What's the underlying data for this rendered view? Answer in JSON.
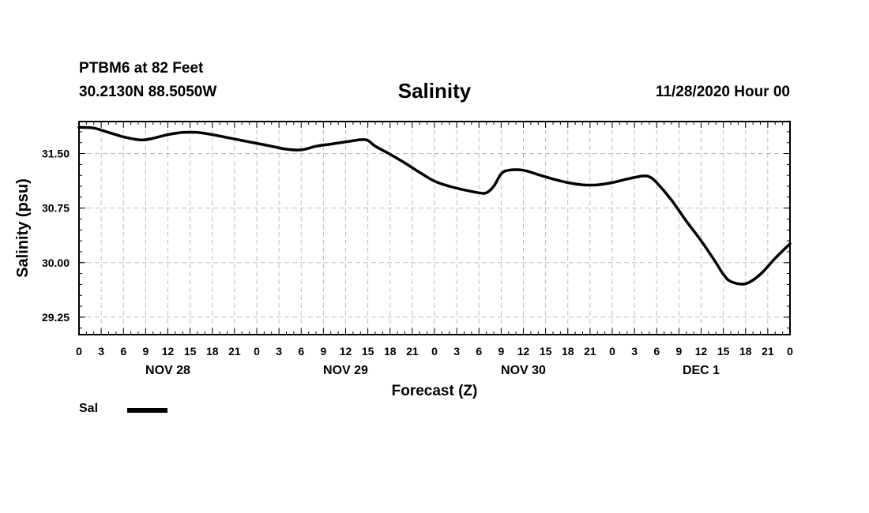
{
  "header": {
    "station": "PTBM6 at 82 Feet",
    "coords": "30.2130N 88.5050W",
    "title": "Salinity",
    "datetime": "11/28/2020 Hour 00"
  },
  "chart_data": {
    "type": "line",
    "title": "Salinity",
    "xlabel": "Forecast (Z)",
    "ylabel": "Salinity (psu)",
    "xlim": [
      0,
      96
    ],
    "ylim": [
      29.01,
      31.94
    ],
    "grid": true,
    "x_ticks": [
      0,
      3,
      6,
      9,
      12,
      15,
      18,
      21,
      24,
      27,
      30,
      33,
      36,
      39,
      42,
      45,
      48,
      51,
      54,
      57,
      60,
      63,
      66,
      69,
      72,
      75,
      78,
      81,
      84,
      87,
      90,
      93,
      96
    ],
    "x_tick_labels": [
      "0",
      "3",
      "6",
      "9",
      "12",
      "15",
      "18",
      "21",
      "0",
      "3",
      "6",
      "9",
      "12",
      "15",
      "18",
      "21",
      "0",
      "3",
      "6",
      "9",
      "12",
      "15",
      "18",
      "21",
      "0",
      "3",
      "6",
      "9",
      "12",
      "15",
      "18",
      "21",
      "0"
    ],
    "day_labels": [
      {
        "label": "NOV 28",
        "at_hour": 12
      },
      {
        "label": "NOV 29",
        "at_hour": 36
      },
      {
        "label": "NOV 30",
        "at_hour": 60
      },
      {
        "label": "DEC 1",
        "at_hour": 84
      }
    ],
    "y_ticks": [
      31.5,
      30.75,
      30.0,
      29.25
    ],
    "y_tick_labels": [
      "31.50",
      "30.75",
      "30.00",
      "29.25"
    ],
    "series": [
      {
        "name": "Sal",
        "color": "#000000",
        "x": [
          0,
          2,
          4,
          6,
          8,
          9,
          10,
          12,
          14,
          16,
          18,
          20,
          22,
          24,
          26,
          28,
          30,
          32,
          34,
          36,
          38,
          39,
          40,
          42,
          44,
          46,
          48,
          50,
          52,
          54,
          55,
          56,
          57,
          58,
          60,
          62,
          64,
          66,
          68,
          70,
          72,
          74,
          76,
          77,
          78,
          80,
          82,
          84,
          86,
          87,
          88,
          90,
          92,
          94,
          96
        ],
        "y": [
          31.86,
          31.85,
          31.79,
          31.73,
          31.69,
          31.69,
          31.71,
          31.76,
          31.79,
          31.79,
          31.76,
          31.72,
          31.68,
          31.64,
          31.6,
          31.56,
          31.55,
          31.6,
          31.63,
          31.66,
          31.69,
          31.68,
          31.6,
          31.49,
          31.37,
          31.24,
          31.12,
          31.05,
          31.0,
          30.96,
          30.96,
          31.05,
          31.22,
          31.27,
          31.27,
          31.21,
          31.15,
          31.1,
          31.07,
          31.07,
          31.1,
          31.15,
          31.19,
          31.18,
          31.1,
          30.86,
          30.57,
          30.3,
          30.0,
          29.84,
          29.74,
          29.71,
          29.84,
          30.06,
          30.26
        ]
      }
    ]
  },
  "legend": {
    "label": "Sal"
  }
}
